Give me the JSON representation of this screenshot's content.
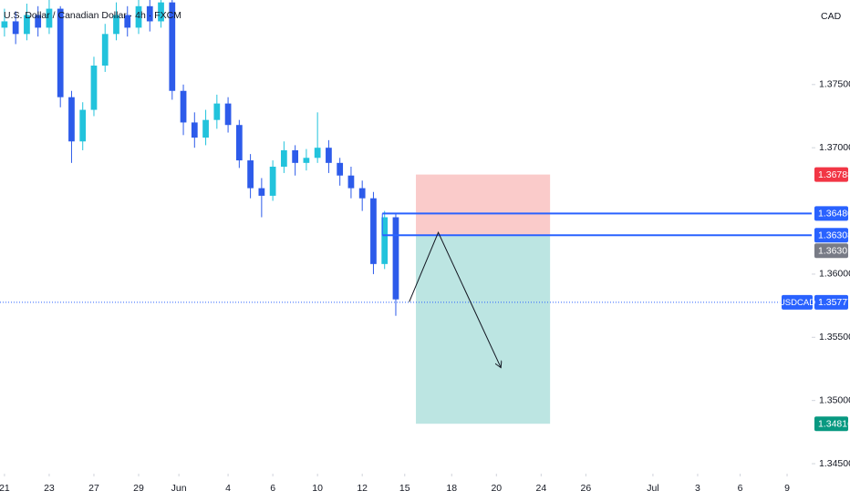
{
  "chart_data": {
    "type": "candlestick",
    "title": "U.S. Dollar / Canadian Dollar · 4h · FXCM",
    "currency": "CAD",
    "up_color": "#22c3dc",
    "down_color": "#2d5bea",
    "x": [
      0,
      0.5,
      1,
      1.5,
      2,
      2.5,
      3,
      3.5,
      4,
      4.5,
      5,
      5.5,
      6,
      6.5,
      7,
      7.5,
      8,
      8.5,
      9,
      9.5,
      10,
      10.5,
      11,
      11.5,
      12,
      12.5,
      13,
      13.5,
      14,
      14.5,
      15,
      15.5,
      16,
      16.5,
      17,
      17.5
    ],
    "open": [
      1.3795,
      1.38,
      1.379,
      1.3805,
      1.3795,
      1.381,
      1.374,
      1.3705,
      1.373,
      1.3765,
      1.379,
      1.3805,
      1.3795,
      1.3812,
      1.38,
      1.3815,
      1.3745,
      1.372,
      1.3708,
      1.3722,
      1.3735,
      1.3718,
      1.369,
      1.3668,
      1.3662,
      1.3685,
      1.3698,
      1.3688,
      1.3692,
      1.37,
      1.3688,
      1.3678,
      1.3668,
      1.366,
      1.3608,
      1.3645
    ],
    "high": [
      1.381,
      1.3808,
      1.3814,
      1.3812,
      1.3818,
      1.3812,
      1.3745,
      1.3736,
      1.3772,
      1.3798,
      1.3815,
      1.3812,
      1.382,
      1.3818,
      1.3822,
      1.3818,
      1.375,
      1.3728,
      1.373,
      1.3742,
      1.374,
      1.3722,
      1.3695,
      1.3676,
      1.369,
      1.3705,
      1.3702,
      1.3699,
      1.3728,
      1.3706,
      1.3692,
      1.3685,
      1.3674,
      1.3665,
      1.365,
      1.3648
    ],
    "low": [
      1.3788,
      1.3782,
      1.3785,
      1.3788,
      1.379,
      1.3732,
      1.3688,
      1.3698,
      1.3725,
      1.376,
      1.3785,
      1.3788,
      1.379,
      1.3792,
      1.3795,
      1.3738,
      1.371,
      1.37,
      1.3702,
      1.3715,
      1.3712,
      1.3684,
      1.366,
      1.3645,
      1.3658,
      1.368,
      1.3678,
      1.3682,
      1.3688,
      1.368,
      1.367,
      1.366,
      1.365,
      1.36,
      1.3604,
      1.3567
    ],
    "close": [
      1.38,
      1.379,
      1.3805,
      1.3795,
      1.381,
      1.374,
      1.3705,
      1.373,
      1.3765,
      1.379,
      1.3805,
      1.3795,
      1.3812,
      1.38,
      1.3815,
      1.3745,
      1.372,
      1.3708,
      1.3722,
      1.3735,
      1.3718,
      1.369,
      1.3668,
      1.3662,
      1.3685,
      1.3698,
      1.3688,
      1.3692,
      1.37,
      1.3688,
      1.3678,
      1.3668,
      1.366,
      1.3608,
      1.3645,
      1.358
    ],
    "xlim": [
      -0.2,
      36.1
    ],
    "xticks": [
      {
        "value": 0,
        "label": "21"
      },
      {
        "value": 2,
        "label": "23"
      },
      {
        "value": 4,
        "label": "27"
      },
      {
        "value": 6,
        "label": "29"
      },
      {
        "value": 7.8,
        "label": "Jun"
      },
      {
        "value": 10,
        "label": "4"
      },
      {
        "value": 12,
        "label": "6"
      },
      {
        "value": 14,
        "label": "10"
      },
      {
        "value": 16,
        "label": "12"
      },
      {
        "value": 17.9,
        "label": "15"
      },
      {
        "value": 20,
        "label": "18"
      },
      {
        "value": 22,
        "label": "20"
      },
      {
        "value": 24,
        "label": "24"
      },
      {
        "value": 26,
        "label": "26"
      },
      {
        "value": 29,
        "label": "Jul"
      },
      {
        "value": 31,
        "label": "3"
      },
      {
        "value": 32.9,
        "label": "6"
      },
      {
        "value": 35,
        "label": "9"
      }
    ],
    "ylim": [
      1.34421,
      1.38169
    ],
    "yticks": [
      {
        "value": 1.375,
        "label": "1.37500"
      },
      {
        "value": 1.37,
        "label": "1.37000"
      },
      {
        "value": 1.36,
        "label": "1.36000"
      },
      {
        "value": 1.355,
        "label": "1.35500"
      },
      {
        "value": 1.35,
        "label": "1.35000"
      },
      {
        "value": 1.345,
        "label": "1.34500"
      }
    ],
    "position": {
      "x": [
        18.4,
        24.4
      ],
      "stop": {
        "value": 1.36788,
        "label": "1.36788"
      },
      "entry": {
        "value": 1.36301,
        "label": "1.36301"
      },
      "target": {
        "value": 1.34816,
        "label": "1.34816"
      }
    },
    "levels": [
      {
        "value": 1.3648,
        "label": "1.36480"
      },
      {
        "value": 1.36308,
        "label": "1.36308"
      }
    ],
    "levels_start": 16.9,
    "last": {
      "symbol": "USDCAD",
      "value": 1.35777,
      "label": "1.35777"
    },
    "arrow": {
      "x": [
        18.1,
        19.4,
        22.2
      ],
      "y": [
        1.3578,
        1.3633,
        1.3526
      ]
    }
  }
}
